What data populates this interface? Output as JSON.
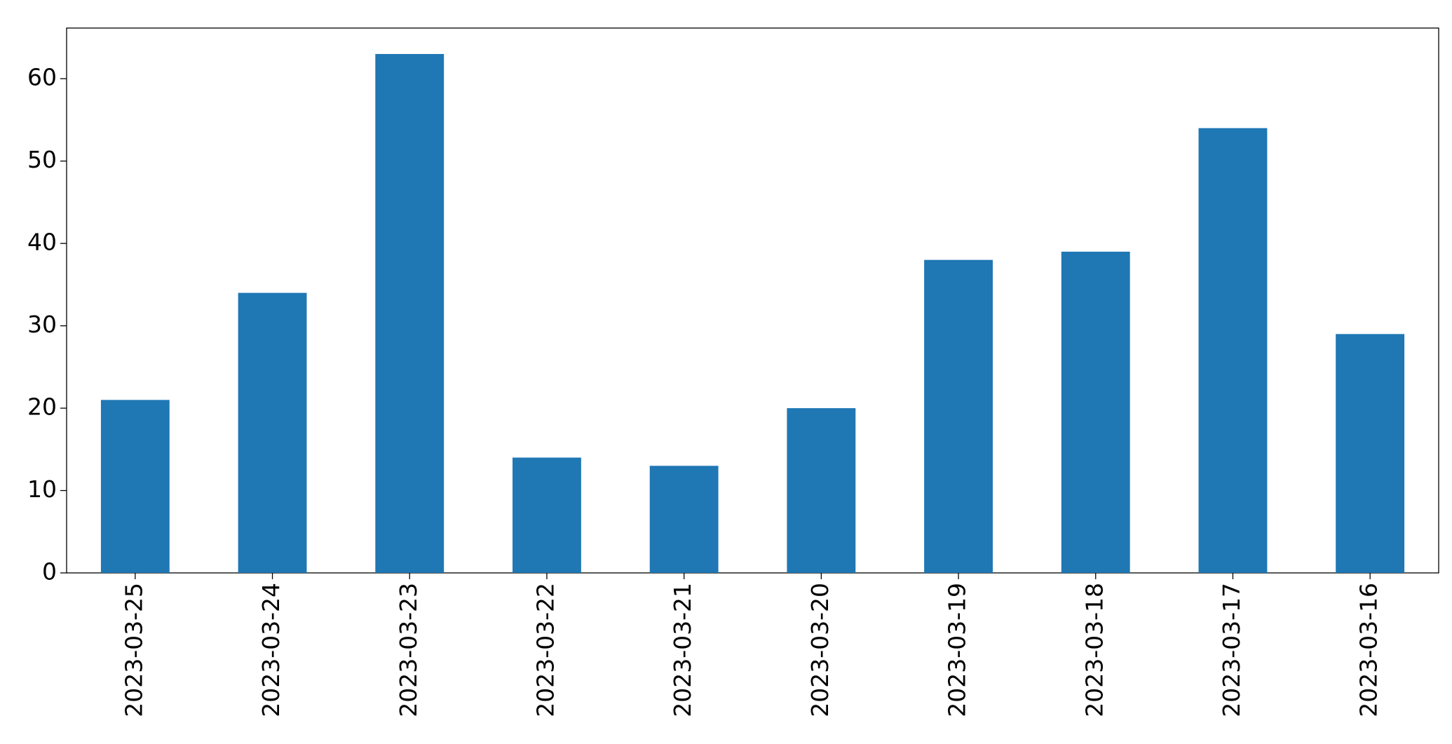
{
  "chart_data": {
    "type": "bar",
    "categories": [
      "2023-03-25",
      "2023-03-24",
      "2023-03-23",
      "2023-03-22",
      "2023-03-21",
      "2023-03-20",
      "2023-03-19",
      "2023-03-18",
      "2023-03-17",
      "2023-03-16"
    ],
    "values": [
      21,
      34,
      63,
      14,
      13,
      20,
      38,
      39,
      54,
      29
    ],
    "color": "#1f77b4",
    "ylim": [
      0,
      66.15
    ],
    "yticks": [
      0,
      10,
      20,
      30,
      40,
      50,
      60
    ],
    "grid": false
  }
}
